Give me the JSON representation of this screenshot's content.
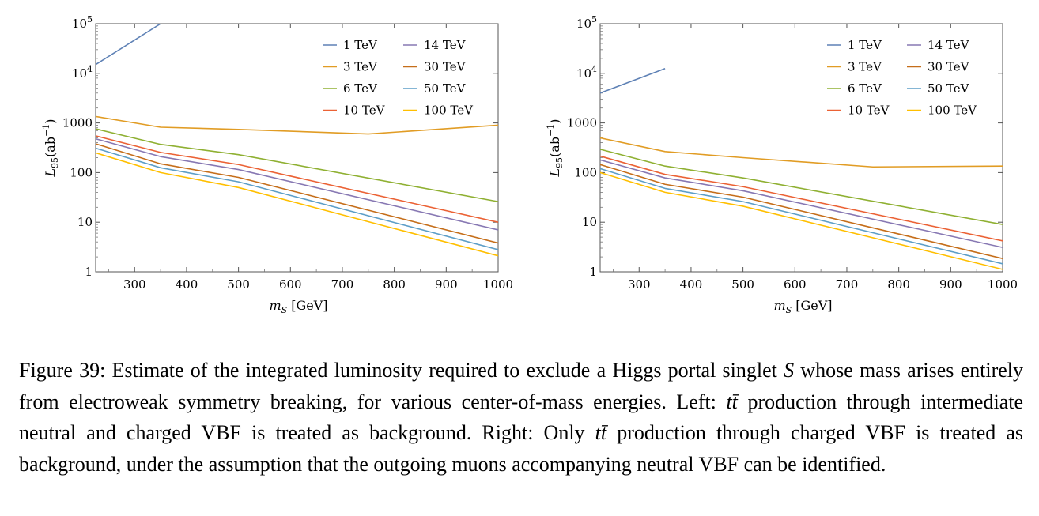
{
  "chart_data": [
    {
      "type": "line",
      "xlabel": "m_S [GeV]",
      "ylabel": "L_95(ab^-1)",
      "xlim": [
        225,
        1000
      ],
      "ylim": [
        1,
        100000
      ],
      "yscale": "log",
      "xticks": [
        300,
        400,
        500,
        600,
        700,
        800,
        900,
        1000
      ],
      "yticks": [
        1,
        10,
        100,
        1000,
        10000,
        100000
      ],
      "ytick_labels": [
        {
          "base": "1"
        },
        {
          "base": "10"
        },
        {
          "base": "100"
        },
        {
          "base": "1000"
        },
        {
          "base": "10",
          "exp": "4"
        },
        {
          "base": "10",
          "exp": "5"
        }
      ],
      "legend_position": "top-right",
      "series": [
        {
          "name": "1 TeV",
          "color": "#5e81b5",
          "points": [
            [
              225,
              15000
            ],
            [
              350,
              100000
            ]
          ]
        },
        {
          "name": "3 TeV",
          "color": "#e19c24",
          "points": [
            [
              225,
              1350
            ],
            [
              350,
              820
            ],
            [
              500,
              740
            ],
            [
              750,
              600
            ],
            [
              1000,
              900
            ]
          ]
        },
        {
          "name": "6 TeV",
          "color": "#8fb032",
          "points": [
            [
              225,
              760
            ],
            [
              350,
              370
            ],
            [
              500,
              230
            ],
            [
              1000,
              26
            ]
          ]
        },
        {
          "name": "10 TeV",
          "color": "#eb6235",
          "points": [
            [
              225,
              550
            ],
            [
              350,
              255
            ],
            [
              500,
              145
            ],
            [
              1000,
              10
            ]
          ]
        },
        {
          "name": "14 TeV",
          "color": "#8778b3",
          "points": [
            [
              225,
              480
            ],
            [
              350,
              210
            ],
            [
              500,
              115
            ],
            [
              1000,
              7
            ]
          ]
        },
        {
          "name": "30 TeV",
          "color": "#c56e1a",
          "points": [
            [
              225,
              380
            ],
            [
              350,
              150
            ],
            [
              500,
              80
            ],
            [
              1000,
              3.8
            ]
          ]
        },
        {
          "name": "50 TeV",
          "color": "#5d9ec7",
          "points": [
            [
              225,
              310
            ],
            [
              350,
              125
            ],
            [
              500,
              65
            ],
            [
              1000,
              2.8
            ]
          ]
        },
        {
          "name": "100 TeV",
          "color": "#ffbf00",
          "points": [
            [
              225,
              250
            ],
            [
              350,
              100
            ],
            [
              500,
              50
            ],
            [
              1000,
              2.1
            ]
          ]
        }
      ]
    },
    {
      "type": "line",
      "xlabel": "m_S [GeV]",
      "ylabel": "L_95(ab^-1)",
      "xlim": [
        225,
        1000
      ],
      "ylim": [
        1,
        100000
      ],
      "yscale": "log",
      "xticks": [
        300,
        400,
        500,
        600,
        700,
        800,
        900,
        1000
      ],
      "yticks": [
        1,
        10,
        100,
        1000,
        10000,
        100000
      ],
      "ytick_labels": [
        {
          "base": "1"
        },
        {
          "base": "10"
        },
        {
          "base": "100"
        },
        {
          "base": "1000"
        },
        {
          "base": "10",
          "exp": "4"
        },
        {
          "base": "10",
          "exp": "5"
        }
      ],
      "legend_position": "top-right",
      "series": [
        {
          "name": "1 TeV",
          "color": "#5e81b5",
          "points": [
            [
              225,
              4000
            ],
            [
              350,
              12500
            ]
          ]
        },
        {
          "name": "3 TeV",
          "color": "#e19c24",
          "points": [
            [
              225,
              500
            ],
            [
              350,
              265
            ],
            [
              500,
              200
            ],
            [
              750,
              130
            ],
            [
              1000,
              135
            ]
          ]
        },
        {
          "name": "6 TeV",
          "color": "#8fb032",
          "points": [
            [
              225,
              295
            ],
            [
              350,
              135
            ],
            [
              500,
              78
            ],
            [
              1000,
              9
            ]
          ]
        },
        {
          "name": "10 TeV",
          "color": "#eb6235",
          "points": [
            [
              225,
              215
            ],
            [
              350,
              92
            ],
            [
              500,
              52
            ],
            [
              1000,
              4.2
            ]
          ]
        },
        {
          "name": "14 TeV",
          "color": "#8778b3",
          "points": [
            [
              225,
              180
            ],
            [
              350,
              78
            ],
            [
              500,
              43
            ],
            [
              1000,
              3.1
            ]
          ]
        },
        {
          "name": "30 TeV",
          "color": "#c56e1a",
          "points": [
            [
              225,
              145
            ],
            [
              350,
              58
            ],
            [
              500,
              32
            ],
            [
              1000,
              1.85
            ]
          ]
        },
        {
          "name": "50 TeV",
          "color": "#5d9ec7",
          "points": [
            [
              225,
              120
            ],
            [
              350,
              48
            ],
            [
              500,
              26
            ],
            [
              1000,
              1.45
            ]
          ]
        },
        {
          "name": "100 TeV",
          "color": "#ffbf00",
          "points": [
            [
              225,
              100
            ],
            [
              350,
              40
            ],
            [
              500,
              21
            ],
            [
              1000,
              1.12
            ]
          ]
        }
      ]
    }
  ],
  "caption": {
    "part1": "Figure 39: Estimate of the integrated luminosity required to exclude a Higgs portal singlet ",
    "symbol_S": "S",
    "part2": " whose mass arises entirely from electroweak symmetry breaking, for various center-of-mass energies. Left: ",
    "ttbar_1": "tt̄",
    "part3": " production through intermediate neutral and charged VBF is treated as background. Right: Only ",
    "ttbar_2": "tt̄",
    "part4": " production through charged VBF is treated as background, under the assumption that the outgoing muons accompanying neutral VBF can be identified."
  }
}
